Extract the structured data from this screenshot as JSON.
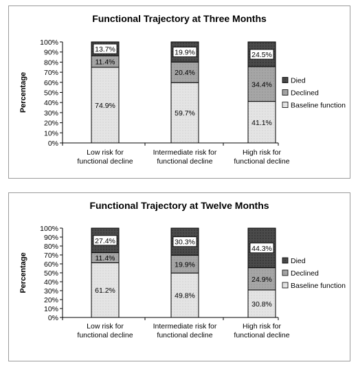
{
  "chart_data": [
    {
      "type": "bar",
      "stacked": true,
      "title": "Functional Trajectory at Three Months",
      "ylabel": "Percentage",
      "xlabel": "",
      "ylim": [
        0,
        100
      ],
      "y_ticks": [
        "0%",
        "10%",
        "20%",
        "30%",
        "40%",
        "50%",
        "60%",
        "70%",
        "80%",
        "90%",
        "100%"
      ],
      "categories": [
        [
          "Low risk for",
          "functional decline"
        ],
        [
          "Intermediate risk for",
          "functional decline"
        ],
        [
          "High risk for",
          "functional decline"
        ]
      ],
      "series": [
        {
          "name": "Baseline function",
          "values": [
            74.9,
            59.7,
            41.1
          ],
          "labels": [
            "74.9%",
            "59.7%",
            "41.1%"
          ],
          "color": "#e4e4e4"
        },
        {
          "name": "Declined",
          "values": [
            11.4,
            20.4,
            34.4
          ],
          "labels": [
            "11.4%",
            "20.4%",
            "34.4%"
          ],
          "color": "#a6a6a6"
        },
        {
          "name": "Died",
          "values": [
            13.7,
            19.9,
            24.5
          ],
          "labels": [
            "13.7%",
            "19.9%",
            "24.5%"
          ],
          "color": "#4a4a4a"
        }
      ],
      "legend": [
        "Died",
        "Declined",
        "Baseline function"
      ],
      "legend_position": "right",
      "grid": false
    },
    {
      "type": "bar",
      "stacked": true,
      "title": "Functional Trajectory at Twelve Months",
      "ylabel": "Percentage",
      "xlabel": "",
      "ylim": [
        0,
        100
      ],
      "y_ticks": [
        "0%",
        "10%",
        "20%",
        "30%",
        "40%",
        "50%",
        "60%",
        "70%",
        "80%",
        "90%",
        "100%"
      ],
      "categories": [
        [
          "Low risk for",
          "functional decline"
        ],
        [
          "Intermediate risk for",
          "functional decline"
        ],
        [
          "High risk for",
          "functional decline"
        ]
      ],
      "series": [
        {
          "name": "Baseline function",
          "values": [
            61.2,
            49.8,
            30.8
          ],
          "labels": [
            "61.2%",
            "49.8%",
            "30.8%"
          ],
          "color": "#e4e4e4"
        },
        {
          "name": "Declined",
          "values": [
            11.4,
            19.9,
            24.9
          ],
          "labels": [
            "11.4%",
            "19.9%",
            "24.9%"
          ],
          "color": "#a6a6a6"
        },
        {
          "name": "Died",
          "values": [
            27.4,
            30.3,
            44.3
          ],
          "labels": [
            "27.4%",
            "30.3%",
            "44.3%"
          ],
          "color": "#4a4a4a"
        }
      ],
      "legend": [
        "Died",
        "Declined",
        "Baseline function"
      ],
      "legend_position": "right",
      "grid": false
    }
  ]
}
